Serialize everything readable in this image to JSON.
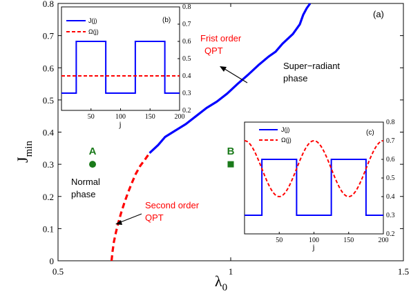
{
  "chart_data": [
    {
      "panel": "(a)",
      "type": "line",
      "xlabel_base": "λ",
      "xlabel_sub": "0",
      "ylabel_base": "J",
      "ylabel_sub": "min",
      "xlim": [
        0.5,
        1.5
      ],
      "ylim": [
        0,
        0.8
      ],
      "xticks": [
        "0.5",
        "1",
        "1.5"
      ],
      "xtick_values": [
        0.5,
        1.0,
        1.5
      ],
      "yticks": [
        "0",
        "0.1",
        "0.2",
        "0.3",
        "0.4",
        "0.5",
        "0.6",
        "0.7",
        "0.8"
      ],
      "ytick_values": [
        0,
        0.1,
        0.2,
        0.3,
        0.4,
        0.5,
        0.6,
        0.7,
        0.8
      ],
      "series": [
        {
          "style": "dashed",
          "color": "#ff0000",
          "x": [
            0.655,
            0.658,
            0.662,
            0.668,
            0.675,
            0.683,
            0.692,
            0.702,
            0.713,
            0.725,
            0.738,
            0.752,
            0.765
          ],
          "y": [
            0.0,
            0.03,
            0.06,
            0.09,
            0.12,
            0.15,
            0.18,
            0.21,
            0.24,
            0.27,
            0.295,
            0.315,
            0.335
          ]
        },
        {
          "style": "solid",
          "color": "#0000ff",
          "x": [
            0.765,
            0.79,
            0.81,
            0.84,
            0.87,
            0.9,
            0.93,
            0.96,
            0.99,
            1.02,
            1.05,
            1.08,
            1.11,
            1.13,
            1.15,
            1.18,
            1.2,
            1.21,
            1.22,
            1.23
          ],
          "y": [
            0.335,
            0.36,
            0.385,
            0.405,
            0.425,
            0.45,
            0.475,
            0.495,
            0.52,
            0.55,
            0.578,
            0.608,
            0.635,
            0.65,
            0.675,
            0.705,
            0.735,
            0.765,
            0.785,
            0.8
          ]
        }
      ],
      "points": [
        {
          "label": "A",
          "x": 0.6,
          "y": 0.3,
          "shape": "circle",
          "color": "#1a7a1a"
        },
        {
          "label": "B",
          "x": 1.0,
          "y": 0.3,
          "shape": "square",
          "color": "#1a7a1a"
        }
      ],
      "annotations": {
        "first_order_line1": "Frist order",
        "first_order_line2": "QPT",
        "second_order_line1": "Second order",
        "second_order_line2": "QPT",
        "super_line1": "Super−radiant",
        "super_line2": "phase",
        "normal_line1": "Normal",
        "normal_line2": "phase"
      }
    },
    {
      "panel": "(b)",
      "type": "line",
      "xlabel": "j",
      "xlim": [
        0,
        200
      ],
      "ylim": [
        0.2,
        0.8
      ],
      "xticks": [
        "50",
        "100",
        "150",
        "200"
      ],
      "xtick_values": [
        50,
        100,
        150,
        200
      ],
      "yticks": [
        "0.2",
        "0.3",
        "0.4",
        "0.5",
        "0.6",
        "0.7",
        "0.8"
      ],
      "ytick_values": [
        0.2,
        0.3,
        0.4,
        0.5,
        0.6,
        0.7,
        0.8
      ],
      "series": [
        {
          "name": "J(j)",
          "style": "solid",
          "color": "#0000ff",
          "x": [
            0,
            25,
            25,
            75,
            75,
            125,
            125,
            175,
            175,
            200
          ],
          "y": [
            0.3,
            0.3,
            0.6,
            0.6,
            0.3,
            0.3,
            0.6,
            0.6,
            0.3,
            0.3
          ]
        },
        {
          "name": "Ω(j)",
          "style": "dashed",
          "color": "#ff0000",
          "x": [
            0,
            200
          ],
          "y": [
            0.4,
            0.4
          ]
        }
      ]
    },
    {
      "panel": "(c)",
      "type": "line",
      "xlabel": "j",
      "xlim": [
        0,
        200
      ],
      "ylim": [
        0.2,
        0.8
      ],
      "xticks": [
        "50",
        "100",
        "150",
        "200"
      ],
      "xtick_values": [
        50,
        100,
        150,
        200
      ],
      "yticks": [
        "0.2",
        "0.3",
        "0.4",
        "0.5",
        "0.6",
        "0.7",
        "0.8"
      ],
      "ytick_values": [
        0.2,
        0.3,
        0.4,
        0.5,
        0.6,
        0.7,
        0.8
      ],
      "series": [
        {
          "name": "J(j)",
          "style": "solid",
          "color": "#0000ff",
          "x": [
            0,
            25,
            25,
            75,
            75,
            125,
            125,
            175,
            175,
            200
          ],
          "y": [
            0.3,
            0.3,
            0.6,
            0.6,
            0.3,
            0.3,
            0.6,
            0.6,
            0.3,
            0.3
          ]
        },
        {
          "name": "Ω(j)",
          "style": "dashed",
          "color": "#ff0000",
          "function": "0.55 + 0.15*cos(2*pi*j/100)"
        }
      ]
    }
  ]
}
